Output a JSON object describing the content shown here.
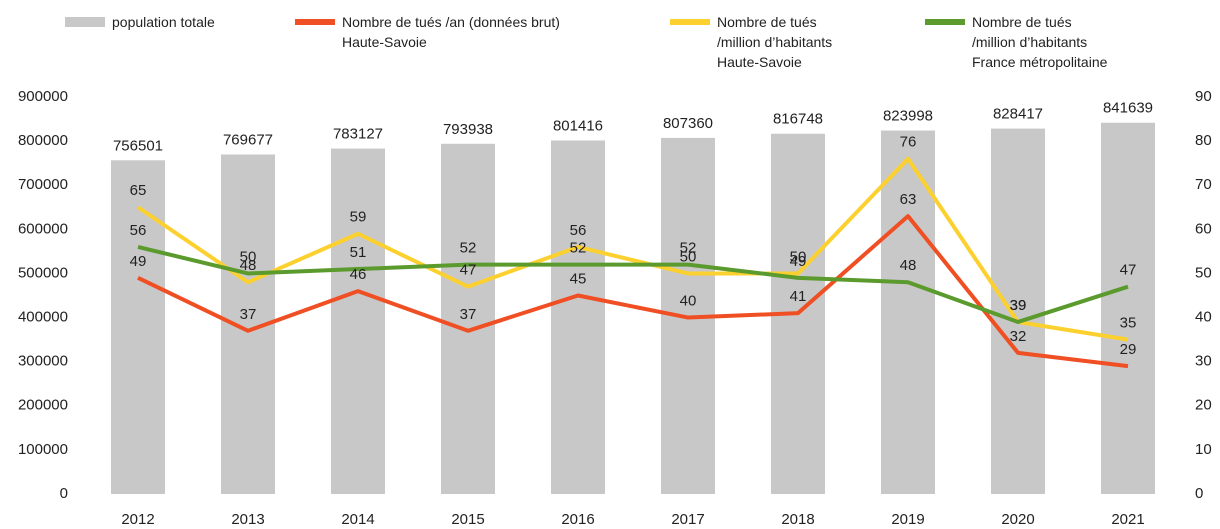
{
  "chart_data": {
    "type": "bar",
    "categories": [
      "2012",
      "2013",
      "2014",
      "2015",
      "2016",
      "2017",
      "2018",
      "2019",
      "2020",
      "2021"
    ],
    "series": [
      {
        "name": "population totale",
        "type": "bar",
        "color": "#c8c8c8",
        "axis": "y",
        "values": [
          756501,
          769677,
          783127,
          793938,
          801416,
          807360,
          816748,
          823998,
          828417,
          841639
        ]
      },
      {
        "name": "Nombre  de tués /an (données brut)\nHaute-Savoie",
        "type": "line",
        "color": "#f04e23",
        "axis": "y2",
        "values": [
          49,
          37,
          46,
          37,
          45,
          40,
          41,
          63,
          32,
          29
        ]
      },
      {
        "name": "Nombre de tués\n/million d’habitants\nHaute-Savoie",
        "type": "line",
        "color": "#fcd02f",
        "axis": "y2",
        "values": [
          65,
          48,
          59,
          47,
          56,
          50,
          50,
          76,
          39,
          35
        ]
      },
      {
        "name": "Nombre de tués\n/million d’habitants\nFrance métropolitaine",
        "type": "line",
        "color": "#5b9a2d",
        "axis": "y2",
        "values": [
          56,
          50,
          51,
          52,
          52,
          52,
          49,
          48,
          39,
          47
        ]
      }
    ],
    "ylim": [
      0,
      900000
    ],
    "yticks": [
      0,
      100000,
      200000,
      300000,
      400000,
      500000,
      600000,
      700000,
      800000,
      900000
    ],
    "y2lim": [
      0,
      90
    ],
    "y2ticks": [
      0,
      10,
      20,
      30,
      40,
      50,
      60,
      70,
      80,
      90
    ],
    "legend": "top",
    "grid": false
  }
}
